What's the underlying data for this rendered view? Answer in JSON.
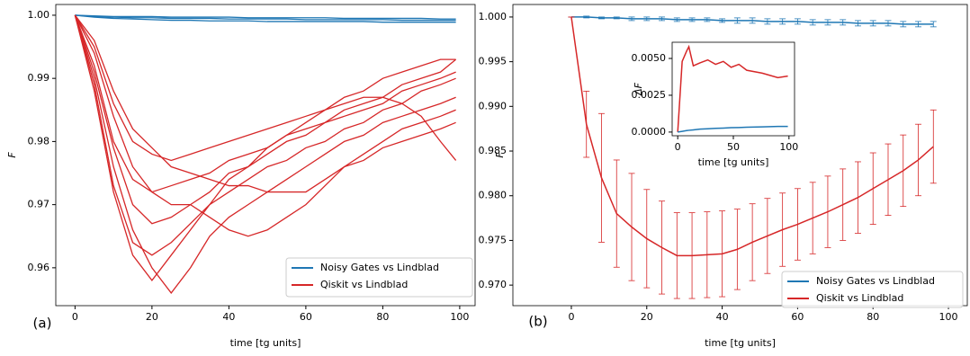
{
  "chart_data": [
    {
      "type": "line",
      "panel_label": "(a)",
      "xlabel": "time [tg units]",
      "ylabel": "F",
      "xlim": [
        -5,
        104
      ],
      "ylim": [
        0.954,
        1.0017
      ],
      "xticks": [
        0,
        20,
        40,
        60,
        80,
        100
      ],
      "yticks": [
        0.96,
        0.97,
        0.98,
        0.99,
        {
          "value": 1.0,
          "label": "1.00"
        }
      ],
      "legend": "lower right",
      "x": [
        0,
        5,
        10,
        15,
        20,
        25,
        30,
        35,
        40,
        45,
        50,
        55,
        60,
        65,
        70,
        75,
        80,
        85,
        90,
        95,
        99
      ],
      "series": [
        {
          "name": "Noisy Gates vs Lindblad",
          "color": "#1f77b4",
          "runs": [
            [
              1.0,
              0.9997,
              0.9995,
              0.9994,
              0.9993,
              0.9992,
              0.9992,
              0.9991,
              0.9991,
              0.9991,
              0.999,
              0.999,
              0.999,
              0.999,
              0.999,
              0.999,
              0.9989,
              0.9989,
              0.9989,
              0.9989,
              0.9989
            ],
            [
              1.0,
              0.9998,
              0.9997,
              0.9996,
              0.9996,
              0.9995,
              0.9995,
              0.9995,
              0.9994,
              0.9994,
              0.9994,
              0.9994,
              0.9993,
              0.9993,
              0.9993,
              0.9993,
              0.9993,
              0.9992,
              0.9992,
              0.9992,
              0.9992
            ],
            [
              1.0,
              0.9999,
              0.9998,
              0.9998,
              0.9998,
              0.9997,
              0.9997,
              0.9997,
              0.9997,
              0.9996,
              0.9996,
              0.9996,
              0.9996,
              0.9996,
              0.9995,
              0.9995,
              0.9995,
              0.9995,
              0.9995,
              0.9994,
              0.9994
            ]
          ]
        },
        {
          "name": "Qiskit vs Lindblad",
          "color": "#d62728",
          "runs": [
            [
              1.0,
              0.988,
              0.972,
              0.962,
              0.958,
              0.962,
              0.966,
              0.97,
              0.972,
              0.974,
              0.976,
              0.977,
              0.979,
              0.98,
              0.982,
              0.983,
              0.985,
              0.986,
              0.988,
              0.989,
              0.99
            ],
            [
              1.0,
              0.992,
              0.98,
              0.974,
              0.972,
              0.973,
              0.974,
              0.975,
              0.977,
              0.978,
              0.979,
              0.981,
              0.982,
              0.983,
              0.985,
              0.986,
              0.987,
              0.989,
              0.99,
              0.991,
              0.993
            ],
            [
              1.0,
              0.995,
              0.986,
              0.98,
              0.978,
              0.977,
              0.978,
              0.979,
              0.98,
              0.981,
              0.982,
              0.983,
              0.984,
              0.985,
              0.986,
              0.987,
              0.987,
              0.986,
              0.984,
              0.98,
              0.977
            ],
            [
              1.0,
              0.99,
              0.976,
              0.966,
              0.96,
              0.956,
              0.96,
              0.965,
              0.968,
              0.97,
              0.972,
              0.974,
              0.976,
              0.978,
              0.98,
              0.981,
              0.983,
              0.984,
              0.985,
              0.986,
              0.987
            ],
            [
              1.0,
              0.994,
              0.984,
              0.976,
              0.972,
              0.97,
              0.97,
              0.968,
              0.966,
              0.965,
              0.966,
              0.968,
              0.97,
              0.973,
              0.976,
              0.978,
              0.98,
              0.982,
              0.983,
              0.984,
              0.985
            ],
            [
              1.0,
              0.991,
              0.979,
              0.97,
              0.967,
              0.968,
              0.97,
              0.972,
              0.975,
              0.976,
              0.978,
              0.98,
              0.981,
              0.983,
              0.984,
              0.985,
              0.986,
              0.988,
              0.989,
              0.99,
              0.991
            ],
            [
              1.0,
              0.996,
              0.988,
              0.982,
              0.979,
              0.976,
              0.975,
              0.974,
              0.973,
              0.973,
              0.972,
              0.972,
              0.972,
              0.974,
              0.976,
              0.977,
              0.979,
              0.98,
              0.981,
              0.982,
              0.983
            ],
            [
              1.0,
              0.989,
              0.973,
              0.964,
              0.962,
              0.964,
              0.967,
              0.97,
              0.974,
              0.976,
              0.979,
              0.981,
              0.983,
              0.985,
              0.987,
              0.988,
              0.99,
              0.991,
              0.992,
              0.993,
              0.993
            ]
          ]
        }
      ]
    },
    {
      "type": "errorbar",
      "panel_label": "(b)",
      "xlabel": "time [tg units]",
      "ylabel": "F",
      "xlim": [
        -15.5,
        105
      ],
      "ylim": [
        0.9677,
        1.0014
      ],
      "xticks": [
        0,
        20,
        40,
        60,
        80,
        100
      ],
      "yticks": [
        {
          "value": 0.97,
          "label": "0.970"
        },
        0.975,
        {
          "value": 0.98,
          "label": "0.980"
        },
        0.985,
        {
          "value": 0.99,
          "label": "0.990"
        },
        0.995,
        {
          "value": 1.0,
          "label": "1.000"
        }
      ],
      "legend": "lower right",
      "x": [
        0,
        4,
        8,
        12,
        16,
        20,
        24,
        28,
        32,
        36,
        40,
        44,
        48,
        52,
        56,
        60,
        64,
        68,
        72,
        76,
        80,
        84,
        88,
        92,
        96
      ],
      "series": [
        {
          "name": "Noisy Gates vs Lindblad",
          "color": "#1f77b4",
          "values": [
            1.0,
            1.0,
            0.9999,
            0.9999,
            0.9998,
            0.9998,
            0.9998,
            0.9997,
            0.9997,
            0.9997,
            0.9996,
            0.9996,
            0.9996,
            0.9995,
            0.9995,
            0.9995,
            0.9994,
            0.9994,
            0.9994,
            0.9993,
            0.9993,
            0.9993,
            0.9992,
            0.9992,
            0.9992
          ],
          "errors": [
            0,
            0.0001,
            0.0001,
            0.0001,
            0.0002,
            0.0002,
            0.0002,
            0.0002,
            0.0002,
            0.0002,
            0.0002,
            0.0003,
            0.0003,
            0.0003,
            0.0003,
            0.0003,
            0.0003,
            0.0003,
            0.0003,
            0.0003,
            0.0003,
            0.0003,
            0.0003,
            0.0003,
            0.0003
          ]
        },
        {
          "name": "Qiskit vs Lindblad",
          "color": "#d62728",
          "values": [
            1.0,
            0.988,
            0.982,
            0.978,
            0.9765,
            0.9752,
            0.9742,
            0.9733,
            0.9733,
            0.9734,
            0.9735,
            0.974,
            0.9748,
            0.9755,
            0.9762,
            0.9768,
            0.9775,
            0.9782,
            0.979,
            0.9798,
            0.9808,
            0.9818,
            0.9828,
            0.984,
            0.9855
          ],
          "errors": [
            0,
            0.0037,
            0.0072,
            0.006,
            0.006,
            0.0055,
            0.0052,
            0.0048,
            0.0048,
            0.0048,
            0.0048,
            0.0045,
            0.0043,
            0.0042,
            0.0041,
            0.004,
            0.004,
            0.004,
            0.004,
            0.004,
            0.004,
            0.004,
            0.004,
            0.004,
            0.0041
          ]
        }
      ]
    },
    {
      "type": "line",
      "xlabel": "time [tg units]",
      "ylabel": "ΔF",
      "xlim": [
        -5,
        105
      ],
      "ylim": [
        -0.00025,
        0.0061
      ],
      "xticks": [
        0,
        50,
        100
      ],
      "yticks": [
        {
          "value": 0,
          "label": "0.0000"
        },
        0.0025,
        {
          "value": 0.005,
          "label": "0.0050"
        }
      ],
      "x": [
        0,
        4,
        8,
        10,
        14,
        20,
        27,
        34,
        41,
        48,
        55,
        62,
        76,
        90,
        99
      ],
      "series": [
        {
          "color": "#d62728",
          "values": [
            0,
            0.0048,
            0.0055,
            0.0058,
            0.0045,
            0.0047,
            0.0049,
            0.0046,
            0.0048,
            0.0044,
            0.0046,
            0.0042,
            0.004,
            0.0037,
            0.0038
          ]
        },
        {
          "color": "#1f77b4",
          "values": [
            0,
            5e-05,
            0.0001,
            0.00012,
            0.00015,
            0.0002,
            0.00022,
            0.00025,
            0.00027,
            0.0003,
            0.00031,
            0.00033,
            0.00035,
            0.00038,
            0.00038
          ]
        }
      ]
    }
  ]
}
